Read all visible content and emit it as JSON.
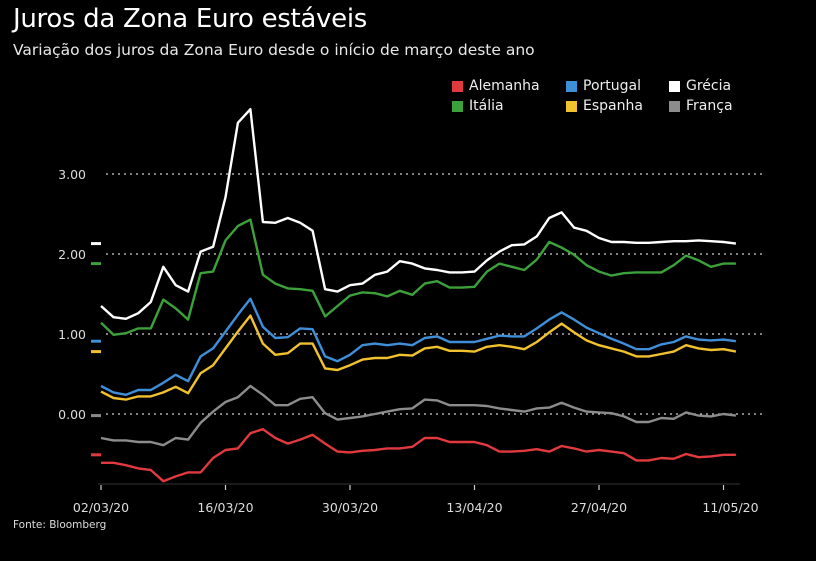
{
  "chart_data": {
    "type": "line",
    "title": "Juros da Zona Euro estáveis",
    "subtitle": "Variação dos juros da Zona Euro desde o início de março deste ano",
    "source": "Fonte: Bloomberg",
    "xlabel": "",
    "ylabel": "",
    "ylim": [
      -0.9,
      3.9
    ],
    "yticks": [
      "3.00",
      "2.00",
      "1.00",
      "0.00"
    ],
    "ytick_values": [
      3,
      2,
      1,
      0
    ],
    "xtick_labels": [
      "02/03/20",
      "16/03/20",
      "30/03/20",
      "13/04/20",
      "27/04/20",
      "11/05/20"
    ],
    "xtick_index": [
      0,
      10,
      20,
      30,
      40,
      50
    ],
    "grid": true,
    "legend_position": "top-right",
    "series": [
      {
        "name": "Alemanha",
        "color": "#e03a3e",
        "values": [
          -0.61,
          -0.61,
          -0.64,
          -0.68,
          -0.7,
          -0.84,
          -0.78,
          -0.73,
          -0.73,
          -0.55,
          -0.45,
          -0.43,
          -0.24,
          -0.19,
          -0.3,
          -0.37,
          -0.32,
          -0.26,
          -0.37,
          -0.47,
          -0.48,
          -0.46,
          -0.45,
          -0.43,
          -0.43,
          -0.41,
          -0.3,
          -0.3,
          -0.35,
          -0.35,
          -0.35,
          -0.39,
          -0.47,
          -0.47,
          -0.46,
          -0.44,
          -0.47,
          -0.4,
          -0.43,
          -0.47,
          -0.45,
          -0.47,
          -0.49,
          -0.58,
          -0.58,
          -0.55,
          -0.56,
          -0.5,
          -0.54,
          -0.53,
          -0.51,
          -0.51
        ]
      },
      {
        "name": "Portugal",
        "color": "#3f8fd8",
        "values": [
          0.35,
          0.27,
          0.24,
          0.3,
          0.3,
          0.39,
          0.49,
          0.41,
          0.72,
          0.82,
          1.03,
          1.24,
          1.44,
          1.09,
          0.95,
          0.96,
          1.07,
          1.06,
          0.72,
          0.66,
          0.74,
          0.86,
          0.88,
          0.86,
          0.88,
          0.86,
          0.95,
          0.97,
          0.9,
          0.9,
          0.9,
          0.94,
          0.98,
          0.97,
          0.97,
          1.07,
          1.18,
          1.27,
          1.18,
          1.08,
          1.01,
          0.94,
          0.88,
          0.81,
          0.81,
          0.87,
          0.9,
          0.97,
          0.93,
          0.92,
          0.93,
          0.91
        ]
      },
      {
        "name": "Grécia",
        "color": "#ffffff",
        "values": [
          1.35,
          1.21,
          1.19,
          1.26,
          1.4,
          1.84,
          1.61,
          1.53,
          2.03,
          2.09,
          2.71,
          3.64,
          3.81,
          2.4,
          2.39,
          2.45,
          2.39,
          2.29,
          1.56,
          1.53,
          1.61,
          1.63,
          1.74,
          1.78,
          1.91,
          1.88,
          1.82,
          1.8,
          1.77,
          1.77,
          1.78,
          1.92,
          2.03,
          2.11,
          2.12,
          2.22,
          2.45,
          2.52,
          2.33,
          2.29,
          2.2,
          2.15,
          2.15,
          2.14,
          2.14,
          2.15,
          2.16,
          2.16,
          2.17,
          2.16,
          2.15,
          2.13
        ]
      },
      {
        "name": "Itália",
        "color": "#3ca13a",
        "values": [
          1.14,
          0.99,
          1.01,
          1.07,
          1.07,
          1.43,
          1.32,
          1.18,
          1.76,
          1.78,
          2.17,
          2.35,
          2.43,
          1.74,
          1.63,
          1.57,
          1.56,
          1.54,
          1.22,
          1.35,
          1.48,
          1.52,
          1.51,
          1.47,
          1.54,
          1.49,
          1.63,
          1.66,
          1.58,
          1.58,
          1.59,
          1.78,
          1.88,
          1.84,
          1.8,
          1.93,
          2.15,
          2.08,
          1.99,
          1.86,
          1.78,
          1.73,
          1.76,
          1.77,
          1.77,
          1.77,
          1.86,
          1.98,
          1.92,
          1.84,
          1.88,
          1.88
        ]
      },
      {
        "name": "Espanha",
        "color": "#f2c12e",
        "values": [
          0.28,
          0.2,
          0.18,
          0.22,
          0.22,
          0.27,
          0.34,
          0.26,
          0.51,
          0.61,
          0.82,
          1.03,
          1.23,
          0.88,
          0.74,
          0.76,
          0.88,
          0.88,
          0.57,
          0.55,
          0.61,
          0.68,
          0.7,
          0.7,
          0.74,
          0.73,
          0.82,
          0.84,
          0.79,
          0.79,
          0.78,
          0.84,
          0.86,
          0.84,
          0.81,
          0.9,
          1.02,
          1.13,
          1.02,
          0.92,
          0.86,
          0.82,
          0.78,
          0.72,
          0.72,
          0.75,
          0.78,
          0.86,
          0.82,
          0.8,
          0.81,
          0.78
        ]
      },
      {
        "name": "França",
        "color": "#8c8c8c",
        "values": [
          -0.3,
          -0.33,
          -0.33,
          -0.35,
          -0.35,
          -0.39,
          -0.3,
          -0.32,
          -0.11,
          0.03,
          0.15,
          0.21,
          0.35,
          0.24,
          0.11,
          0.11,
          0.19,
          0.21,
          0.01,
          -0.07,
          -0.05,
          -0.03,
          0.0,
          0.03,
          0.06,
          0.07,
          0.18,
          0.17,
          0.11,
          0.11,
          0.11,
          0.1,
          0.07,
          0.05,
          0.03,
          0.07,
          0.08,
          0.14,
          0.08,
          0.03,
          0.02,
          0.01,
          -0.03,
          -0.1,
          -0.1,
          -0.05,
          -0.06,
          0.02,
          -0.02,
          -0.03,
          0.0,
          -0.02
        ]
      }
    ]
  }
}
